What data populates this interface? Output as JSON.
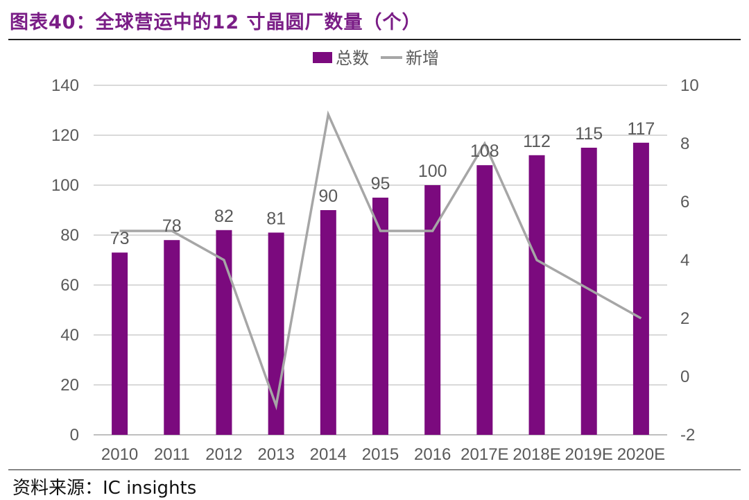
{
  "title": "图表40：全球营运中的12 寸晶圆厂数量（个）",
  "source": "资料来源：IC insights",
  "colors": {
    "bar": "#7b0a7e",
    "line": "#a6a6a6",
    "grid": "#d9d9d9",
    "title": "#7a1d86"
  },
  "chart_data": {
    "type": "bar",
    "categories": [
      "2010",
      "2011",
      "2012",
      "2013",
      "2014",
      "2015",
      "2016",
      "2017E",
      "2018E",
      "2019E",
      "2020E"
    ],
    "series": [
      {
        "name": "总数",
        "type": "bar",
        "axis": "left",
        "values": [
          73,
          78,
          82,
          81,
          90,
          95,
          100,
          108,
          112,
          115,
          117
        ]
      },
      {
        "name": "新增",
        "type": "line",
        "axis": "right",
        "values": [
          5,
          5,
          4,
          -1,
          9,
          5,
          5,
          8,
          4,
          3,
          2
        ]
      }
    ],
    "y_left": {
      "min": 0,
      "max": 140,
      "ticks": [
        0,
        20,
        40,
        60,
        80,
        100,
        120,
        140
      ]
    },
    "y_right": {
      "min": -2,
      "max": 10,
      "ticks": [
        -2,
        0,
        2,
        4,
        6,
        8,
        10
      ]
    },
    "legend": {
      "position": "top-center",
      "items": [
        "总数",
        "新增"
      ]
    },
    "data_labels": [
      73,
      78,
      82,
      81,
      90,
      95,
      100,
      108,
      112,
      115,
      117
    ],
    "grid": true
  }
}
